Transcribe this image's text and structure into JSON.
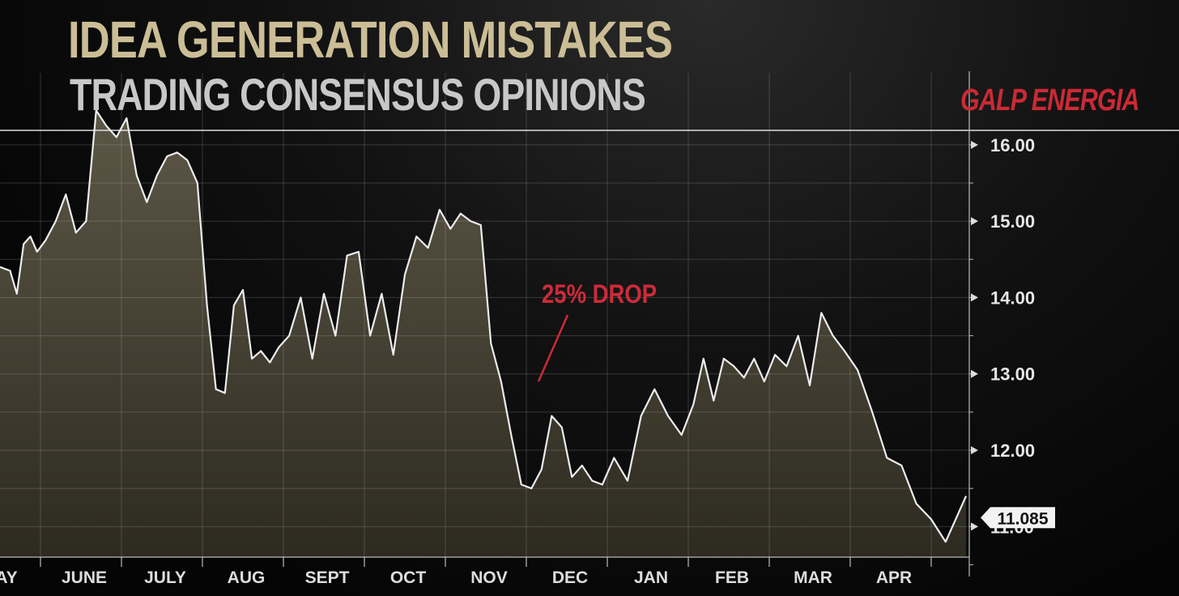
{
  "header": {
    "title": "IDEA GENERATION MISTAKES",
    "subtitle": "TRADING CONSENSUS OPINIONS",
    "company": "GALP ENERGIA"
  },
  "colors": {
    "title": "#cbbd95",
    "subtitle": "#c8c8c8",
    "company": "#c92a35",
    "line": "#ececec",
    "area_top": "#5c5746",
    "area_bottom": "#2d2a20",
    "grid": "#c8c8c8",
    "annotation": "#cc2b3a"
  },
  "chart_data": {
    "type": "area",
    "title": "GALP ENERGIA",
    "x_axis": {
      "type": "month",
      "tick_labels": [
        "AY",
        "JUNE",
        "JULY",
        "AUG",
        "SEPT",
        "OCT",
        "NOV",
        "DEC",
        "JAN",
        "FEB",
        "MAR",
        "APR"
      ],
      "range": [
        "MAY",
        "APR"
      ]
    },
    "y_axis": {
      "position": "right",
      "range": [
        10.6,
        16.2
      ],
      "ticks": [
        11,
        12,
        13,
        14,
        15,
        16
      ],
      "tick_labels": [
        "11.00",
        "12.00",
        "13.00",
        "14.00",
        "15.00",
        "16.00"
      ]
    },
    "grid": true,
    "last_value": 11.085,
    "last_value_label": "11.085",
    "annotations": [
      {
        "text": "25% DROP",
        "points_to_month": "NOV",
        "value": 12.6
      }
    ],
    "series": [
      {
        "points": [
          [
            "MAY",
            14.4
          ],
          [
            "MAY",
            14.35
          ],
          [
            "MAY",
            14.05
          ],
          [
            "MAY",
            14.7
          ],
          [
            "MAY",
            14.8
          ],
          [
            "MAY",
            14.6
          ],
          [
            "JUNE",
            14.75
          ],
          [
            "JUNE",
            15.0
          ],
          [
            "JUNE",
            15.35
          ],
          [
            "JUNE",
            14.85
          ],
          [
            "JUNE",
            15.0
          ],
          [
            "JUNE",
            16.45
          ],
          [
            "JUNE",
            16.25
          ],
          [
            "JUNE",
            16.1
          ],
          [
            "JULY",
            16.35
          ],
          [
            "JULY",
            15.6
          ],
          [
            "JULY",
            15.25
          ],
          [
            "JULY",
            15.6
          ],
          [
            "JULY",
            15.85
          ],
          [
            "JULY",
            15.9
          ],
          [
            "JULY",
            15.8
          ],
          [
            "JULY",
            15.5
          ],
          [
            "AUG",
            13.9
          ],
          [
            "AUG",
            12.8
          ],
          [
            "AUG",
            12.75
          ],
          [
            "AUG",
            13.9
          ],
          [
            "AUG",
            14.1
          ],
          [
            "AUG",
            13.2
          ],
          [
            "AUG",
            13.3
          ],
          [
            "AUG",
            13.15
          ],
          [
            "AUG",
            13.35
          ],
          [
            "SEPT",
            13.5
          ],
          [
            "SEPT",
            14.0
          ],
          [
            "SEPT",
            13.2
          ],
          [
            "SEPT",
            14.05
          ],
          [
            "SEPT",
            13.5
          ],
          [
            "SEPT",
            14.55
          ],
          [
            "SEPT",
            14.6
          ],
          [
            "OCT",
            13.5
          ],
          [
            "OCT",
            14.05
          ],
          [
            "OCT",
            13.25
          ],
          [
            "OCT",
            14.3
          ],
          [
            "OCT",
            14.8
          ],
          [
            "OCT",
            14.65
          ],
          [
            "OCT",
            15.15
          ],
          [
            "NOV",
            14.9
          ],
          [
            "NOV",
            15.1
          ],
          [
            "NOV",
            15.0
          ],
          [
            "NOV",
            14.95
          ],
          [
            "NOV",
            13.4
          ],
          [
            "NOV",
            12.9
          ],
          [
            "NOV",
            12.2
          ],
          [
            "NOV",
            11.55
          ],
          [
            "DEC",
            11.5
          ],
          [
            "DEC",
            11.75
          ],
          [
            "DEC",
            12.45
          ],
          [
            "DEC",
            12.3
          ],
          [
            "DEC",
            11.65
          ],
          [
            "DEC",
            11.8
          ],
          [
            "DEC",
            11.6
          ],
          [
            "DEC",
            11.55
          ],
          [
            "JAN",
            11.9
          ],
          [
            "JAN",
            11.6
          ],
          [
            "JAN",
            12.45
          ],
          [
            "JAN",
            12.8
          ],
          [
            "JAN",
            12.45
          ],
          [
            "JAN",
            12.2
          ],
          [
            "FEB",
            12.6
          ],
          [
            "FEB",
            13.2
          ],
          [
            "FEB",
            12.65
          ],
          [
            "FEB",
            13.2
          ],
          [
            "FEB",
            13.1
          ],
          [
            "FEB",
            12.95
          ],
          [
            "FEB",
            13.2
          ],
          [
            "FEB",
            12.9
          ],
          [
            "MAR",
            13.25
          ],
          [
            "MAR",
            13.1
          ],
          [
            "MAR",
            13.5
          ],
          [
            "MAR",
            12.85
          ],
          [
            "MAR",
            13.8
          ],
          [
            "MAR",
            13.5
          ],
          [
            "MAR",
            13.3
          ],
          [
            "APR",
            13.05
          ],
          [
            "APR",
            12.5
          ],
          [
            "APR",
            11.9
          ],
          [
            "APR",
            11.8
          ],
          [
            "APR",
            11.3
          ],
          [
            "APR",
            11.1
          ],
          [
            "APR",
            10.8
          ],
          [
            "APR",
            11.4
          ]
        ]
      }
    ]
  }
}
